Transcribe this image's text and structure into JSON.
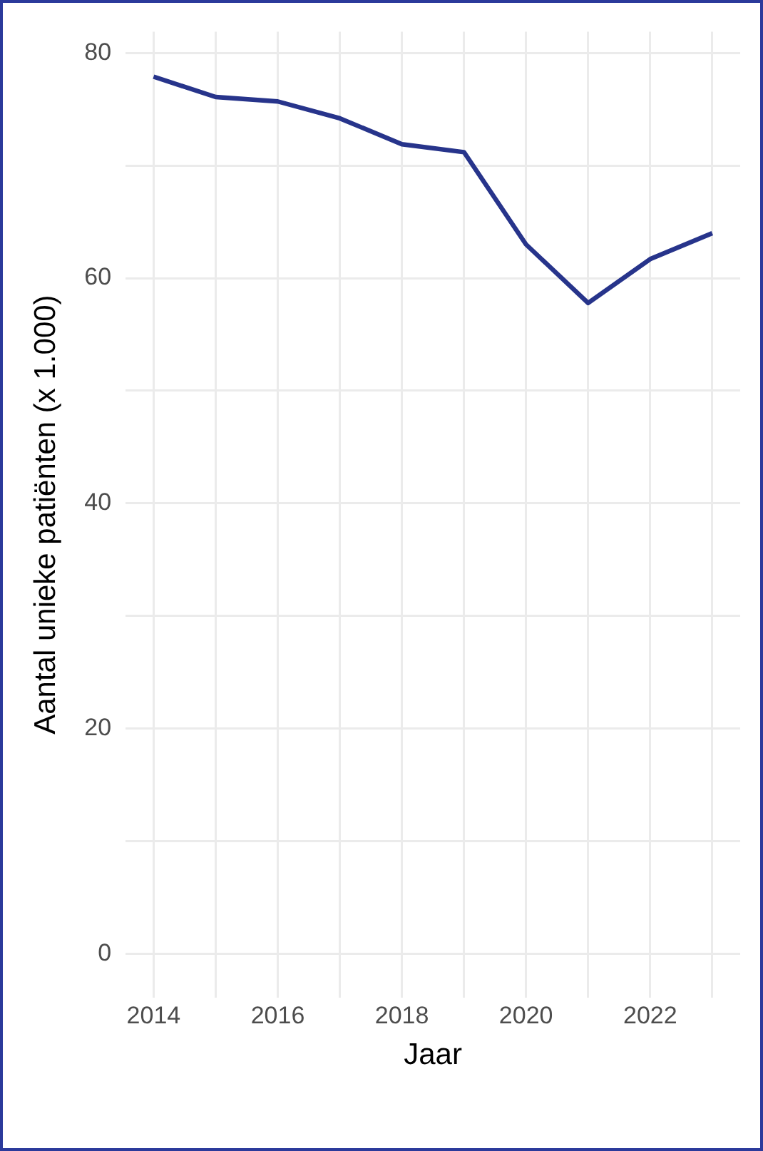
{
  "chart_data": {
    "type": "line",
    "xlabel": "Jaar",
    "ylabel": "Aantal unieke patiënten (x 1.000)",
    "x": [
      2014,
      2015,
      2016,
      2017,
      2018,
      2019,
      2020,
      2021,
      2022,
      2023
    ],
    "series": [
      {
        "color": "#27348b",
        "values": [
          77.9,
          76.1,
          75.7,
          74.2,
          71.9,
          71.2,
          63.0,
          57.8,
          61.7,
          64.0
        ]
      }
    ],
    "xlim": [
      2013.55,
      2023.45
    ],
    "xticks": [
      2014,
      {
        "value": 2015,
        "label": null
      },
      2016,
      {
        "value": 2017,
        "label": null
      },
      2018,
      {
        "value": 2019,
        "label": null
      },
      2020,
      {
        "value": 2021,
        "label": null
      },
      2022,
      {
        "value": 2023,
        "label": null
      }
    ],
    "ylim": [
      -3.9,
      81.9
    ],
    "yticks": [
      0,
      {
        "value": 10,
        "label": null
      },
      20,
      {
        "value": 30,
        "label": null
      },
      40,
      {
        "value": 50,
        "label": null
      },
      60,
      {
        "value": 70,
        "label": null
      },
      80
    ],
    "grid": true,
    "legend": false,
    "marker": "none",
    "line_style": "solid"
  }
}
